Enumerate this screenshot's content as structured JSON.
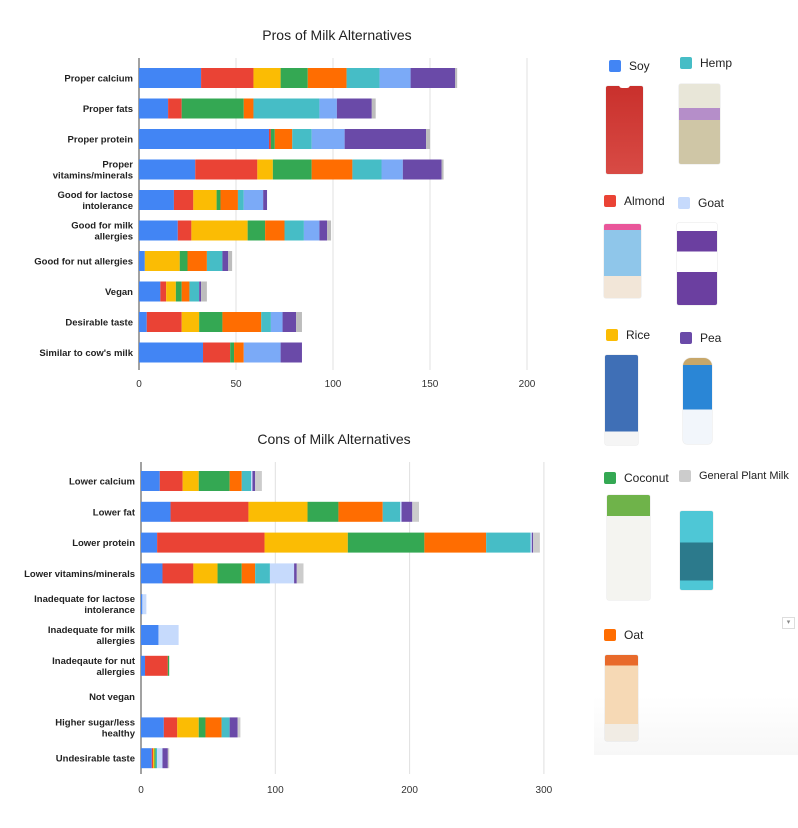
{
  "legend": {
    "items": [
      {
        "label": "Soy",
        "color": "#4285f4"
      },
      {
        "label": "Hemp",
        "color": "#46bdc6"
      },
      {
        "label": "Almond",
        "color": "#ea4335"
      },
      {
        "label": "Goat",
        "color": "#c6dafc"
      },
      {
        "label": "Rice",
        "color": "#fbbc04"
      },
      {
        "label": "Pea",
        "color": "#6a4aa8"
      },
      {
        "label": "Coconut",
        "color": "#34a853"
      },
      {
        "label": "General Plant Milk",
        "color": "#cccccc"
      },
      {
        "label": "Oat",
        "color": "#ff6d01"
      }
    ]
  },
  "chart_data": [
    {
      "type": "bar",
      "orientation": "horizontal",
      "stacked": true,
      "title": "Pros of Milk Alternatives",
      "xlim": [
        0,
        215
      ],
      "xticks": [
        0,
        50,
        100,
        150,
        200
      ],
      "grid": true,
      "categories": [
        "Proper calcium",
        "Proper fats",
        "Proper protein",
        "Proper\nvitamins/minerals",
        "Good for lactose\nintolerance",
        "Good for milk\nallergies",
        "Good for nut allergies",
        "Vegan",
        "Desirable taste",
        "Similar to cow's milk"
      ],
      "series": [
        {
          "name": "Soy",
          "color": "#4285f4",
          "values": [
            32,
            15,
            67,
            29,
            18,
            20,
            3,
            11,
            4,
            33
          ]
        },
        {
          "name": "Almond",
          "color": "#ea4335",
          "values": [
            27,
            7,
            1,
            32,
            10,
            7,
            0,
            3,
            18,
            14
          ]
        },
        {
          "name": "Rice",
          "color": "#fbbc04",
          "values": [
            14,
            0,
            0,
            8,
            12,
            29,
            18,
            5,
            9,
            0
          ]
        },
        {
          "name": "Coconut",
          "color": "#34a853",
          "values": [
            14,
            32,
            2,
            20,
            2,
            9,
            4,
            3,
            12,
            2
          ]
        },
        {
          "name": "Oat",
          "color": "#ff6d01",
          "values": [
            20,
            5,
            9,
            21,
            9,
            10,
            10,
            4,
            20,
            5
          ]
        },
        {
          "name": "Hemp",
          "color": "#46bdc6",
          "values": [
            17,
            34,
            10,
            15,
            3,
            10,
            8,
            5,
            5,
            0
          ]
        },
        {
          "name": "Goat",
          "color": "#7baaf7",
          "values": [
            16,
            9,
            17,
            11,
            10,
            8,
            0,
            0,
            6,
            19
          ]
        },
        {
          "name": "Pea",
          "color": "#6a4aa8",
          "values": [
            23,
            18,
            42,
            20,
            2,
            4,
            3,
            1,
            7,
            11
          ]
        },
        {
          "name": "General Plant Milk",
          "color": "#bdbdbd",
          "values": [
            1,
            2,
            2,
            1,
            0,
            2,
            2,
            3,
            3,
            0
          ]
        }
      ]
    },
    {
      "type": "bar",
      "orientation": "horizontal",
      "stacked": true,
      "title": "Cons of Milk Alternatives",
      "xlim": [
        0,
        310
      ],
      "xticks": [
        0,
        100,
        200,
        300
      ],
      "grid": true,
      "categories": [
        "Lower calcium",
        "Lower fat",
        "Lower protein",
        "Lower vitamins/minerals",
        "Inadequate for lactose\nintolerance",
        "Inadequate for milk\nallergies",
        "Inadeqaute for nut\nallergies",
        "Not vegan",
        "Higher sugar/less\nhealthy",
        "Undesirable taste"
      ],
      "series": [
        {
          "name": "Soy",
          "color": "#4285f4",
          "values": [
            14,
            22,
            12,
            16,
            1,
            13,
            3,
            0,
            17,
            8
          ]
        },
        {
          "name": "Almond",
          "color": "#ea4335",
          "values": [
            17,
            58,
            80,
            23,
            0,
            0,
            17,
            0,
            10,
            1
          ]
        },
        {
          "name": "Rice",
          "color": "#fbbc04",
          "values": [
            12,
            44,
            62,
            18,
            0,
            0,
            0,
            0,
            16,
            1
          ]
        },
        {
          "name": "Coconut",
          "color": "#34a853",
          "values": [
            23,
            23,
            57,
            18,
            0,
            0,
            1,
            0,
            5,
            1
          ]
        },
        {
          "name": "Oat",
          "color": "#ff6d01",
          "values": [
            9,
            33,
            46,
            10,
            0,
            0,
            0,
            0,
            12,
            0
          ]
        },
        {
          "name": "Hemp",
          "color": "#46bdc6",
          "values": [
            7,
            13,
            33,
            11,
            0,
            0,
            0,
            0,
            6,
            1
          ]
        },
        {
          "name": "Goat",
          "color": "#c6dafc",
          "values": [
            1,
            1,
            1,
            18,
            3,
            15,
            0,
            0,
            0,
            4
          ]
        },
        {
          "name": "Pea",
          "color": "#6a4aa8",
          "values": [
            2,
            8,
            1,
            2,
            0,
            0,
            0,
            0,
            6,
            4
          ]
        },
        {
          "name": "General Plant Milk",
          "color": "#cccccc",
          "values": [
            5,
            5,
            5,
            5,
            0,
            0,
            0,
            0,
            2,
            1
          ]
        }
      ]
    }
  ]
}
